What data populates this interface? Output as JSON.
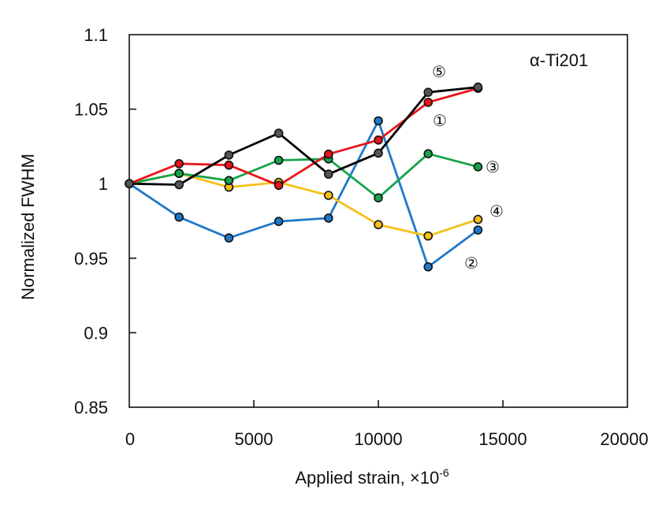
{
  "chart_data": {
    "type": "line",
    "title": "",
    "annotation": "α-Ti201",
    "xlabel": "Applied strain, ×10",
    "xlabel_exponent": "-6",
    "ylabel": "Normalized FWHM",
    "xlim": [
      0,
      20000
    ],
    "ylim": [
      0.85,
      1.1
    ],
    "grid": false,
    "x_ticks": [
      0,
      5000,
      10000,
      15000,
      20000
    ],
    "x_tick_labels": [
      "0",
      "5000",
      "10000",
      "15000",
      "20000"
    ],
    "y_ticks": [
      0.85,
      0.9,
      0.95,
      1,
      1.05,
      1.1
    ],
    "y_tick_labels": [
      "0.85",
      "0.9",
      "0.95",
      "1",
      "1.05",
      "1.1"
    ],
    "x": [
      0,
      2000,
      4000,
      6000,
      8000,
      10000,
      12000,
      14000
    ],
    "series": [
      {
        "name": "①",
        "color": "#e8141b",
        "values": [
          1.0,
          1.0134,
          1.0125,
          0.9989,
          1.0198,
          1.0293,
          1.0546,
          1.064
        ]
      },
      {
        "name": "②",
        "color": "#1f78c8",
        "values": [
          1.0,
          0.9776,
          0.9636,
          0.9747,
          0.9769,
          1.0422,
          0.9442,
          0.9689
        ]
      },
      {
        "name": "③",
        "color": "#16a34a",
        "values": [
          1.0,
          1.0069,
          1.0021,
          1.0157,
          1.0166,
          0.9905,
          1.0201,
          1.0113
        ]
      },
      {
        "name": "④",
        "color": "#f5c01a",
        "values": [
          1.0,
          1.0069,
          0.9977,
          1.0009,
          0.9922,
          0.9725,
          0.9649,
          0.976
        ]
      },
      {
        "name": "⑤",
        "color": "#000000",
        "marker_color": "#555555",
        "values": [
          1.0,
          0.9993,
          1.0192,
          1.0339,
          1.0064,
          1.0205,
          1.0613,
          1.0648
        ]
      }
    ]
  }
}
